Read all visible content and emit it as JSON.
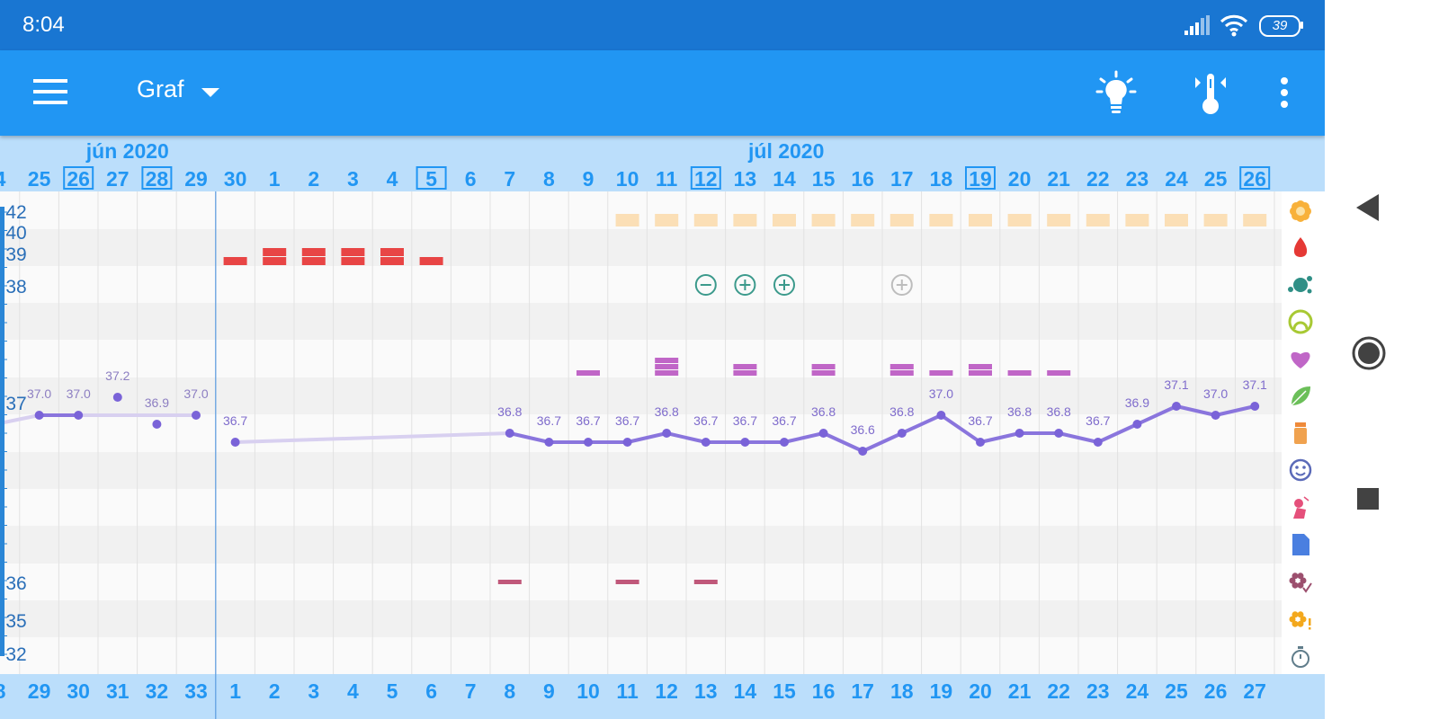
{
  "status_bar": {
    "time": "8:04",
    "battery": "39"
  },
  "app_bar": {
    "title": "Graf"
  },
  "calendar": {
    "months": [
      {
        "label": "jún 2020",
        "anchor_day": "27"
      },
      {
        "label": "júl 2020",
        "anchor_day": "14"
      }
    ],
    "dates": [
      "4",
      "25",
      "26",
      "27",
      "28",
      "29",
      "30",
      "1",
      "2",
      "3",
      "4",
      "5",
      "6",
      "7",
      "8",
      "9",
      "10",
      "11",
      "12",
      "13",
      "14",
      "15",
      "16",
      "17",
      "18",
      "19",
      "20",
      "21",
      "22",
      "23",
      "24",
      "25",
      "26"
    ],
    "boxed_dates": [
      "28",
      "5",
      "12",
      "19",
      "26"
    ],
    "cycle_days": [
      "8",
      "29",
      "30",
      "31",
      "32",
      "33",
      "1",
      "2",
      "3",
      "4",
      "5",
      "6",
      "7",
      "8",
      "9",
      "10",
      "11",
      "12",
      "13",
      "14",
      "15",
      "16",
      "17",
      "18",
      "19",
      "20",
      "21",
      "22",
      "23",
      "24",
      "25",
      "26",
      "27"
    ],
    "axis_labels": [
      "42",
      "40",
      "39",
      "38",
      "37",
      "36",
      "35",
      "32"
    ]
  },
  "chart_data": {
    "type": "line",
    "x": [
      "25",
      "26",
      "27",
      "28",
      "29",
      "30",
      "1",
      "2",
      "3",
      "4",
      "5",
      "6",
      "7",
      "8",
      "9",
      "10",
      "11",
      "12",
      "13",
      "14",
      "15",
      "16",
      "17",
      "18",
      "19",
      "20",
      "21",
      "22",
      "23",
      "24",
      "25",
      "26"
    ],
    "series": [
      {
        "values": [
          37.0,
          37.0,
          37.2,
          36.9,
          37.0,
          36.7,
          null,
          null,
          null,
          null,
          null,
          null,
          36.8,
          36.7,
          36.7,
          36.7,
          36.8,
          36.7,
          36.7,
          36.7,
          36.8,
          36.6,
          36.8,
          37.0,
          36.7,
          36.8,
          36.8,
          36.7,
          36.9,
          37.1,
          37.0,
          37.1
        ]
      }
    ],
    "data_labels": [
      "37.0",
      "37.0",
      "37.2",
      "36.9",
      "37.0",
      "36.7",
      "36.8",
      "36.7",
      "36.7",
      "36.7",
      "36.8",
      "36.7",
      "36.7",
      "36.7",
      "36.8",
      "36.6",
      "36.8",
      "37.0",
      "36.7",
      "36.8",
      "36.8",
      "36.7",
      "36.9",
      "37.1",
      "37.0",
      "37.1"
    ]
  },
  "symptoms": {
    "tan_row_start": "10",
    "tan_row_end": "26",
    "menstruation": [
      {
        "day": "30",
        "level": 1
      },
      {
        "day": "1",
        "level": 2
      },
      {
        "day": "2",
        "level": 2
      },
      {
        "day": "3",
        "level": 2
      },
      {
        "day": "4",
        "level": 2
      },
      {
        "day": "5",
        "level": 1
      }
    ],
    "tests": [
      {
        "day": "12",
        "result": "negative"
      },
      {
        "day": "13",
        "result": "positive"
      },
      {
        "day": "14",
        "result": "positive"
      },
      {
        "day": "17",
        "result": "faded-positive"
      }
    ],
    "mucus": [
      {
        "day": "9",
        "level": 1
      },
      {
        "day": "11",
        "level": 3
      },
      {
        "day": "13",
        "level": 2
      },
      {
        "day": "15",
        "level": 2
      },
      {
        "day": "17",
        "level": 2
      },
      {
        "day": "18",
        "level": 1
      },
      {
        "day": "19",
        "level": 2
      },
      {
        "day": "20",
        "level": 1
      },
      {
        "day": "21",
        "level": 1
      }
    ],
    "lower_marks": [
      "7",
      "10",
      "12"
    ]
  },
  "legend_icons": [
    "flower-icon",
    "drop-icon",
    "splash-icon",
    "cervix-icon",
    "heart-icon",
    "leaf-icon",
    "pill-bottle-icon",
    "smiley-icon",
    "pain-figure-icon",
    "note-icon",
    "flower-check-icon",
    "flower-warning-icon",
    "stopwatch-icon",
    "cycle-icon"
  ],
  "nav_icons": [
    "back-icon",
    "home-icon",
    "recents-icon"
  ],
  "colors": {
    "status_bar": "#1976d2",
    "app_bar": "#2196f3",
    "date_header": "#bbdefb",
    "temperature_line": "#8a75dd",
    "menstruation": "#e84545",
    "mucus": "#c066c7",
    "fertile": "#fbdfb6",
    "test": "#3c9a8c"
  }
}
